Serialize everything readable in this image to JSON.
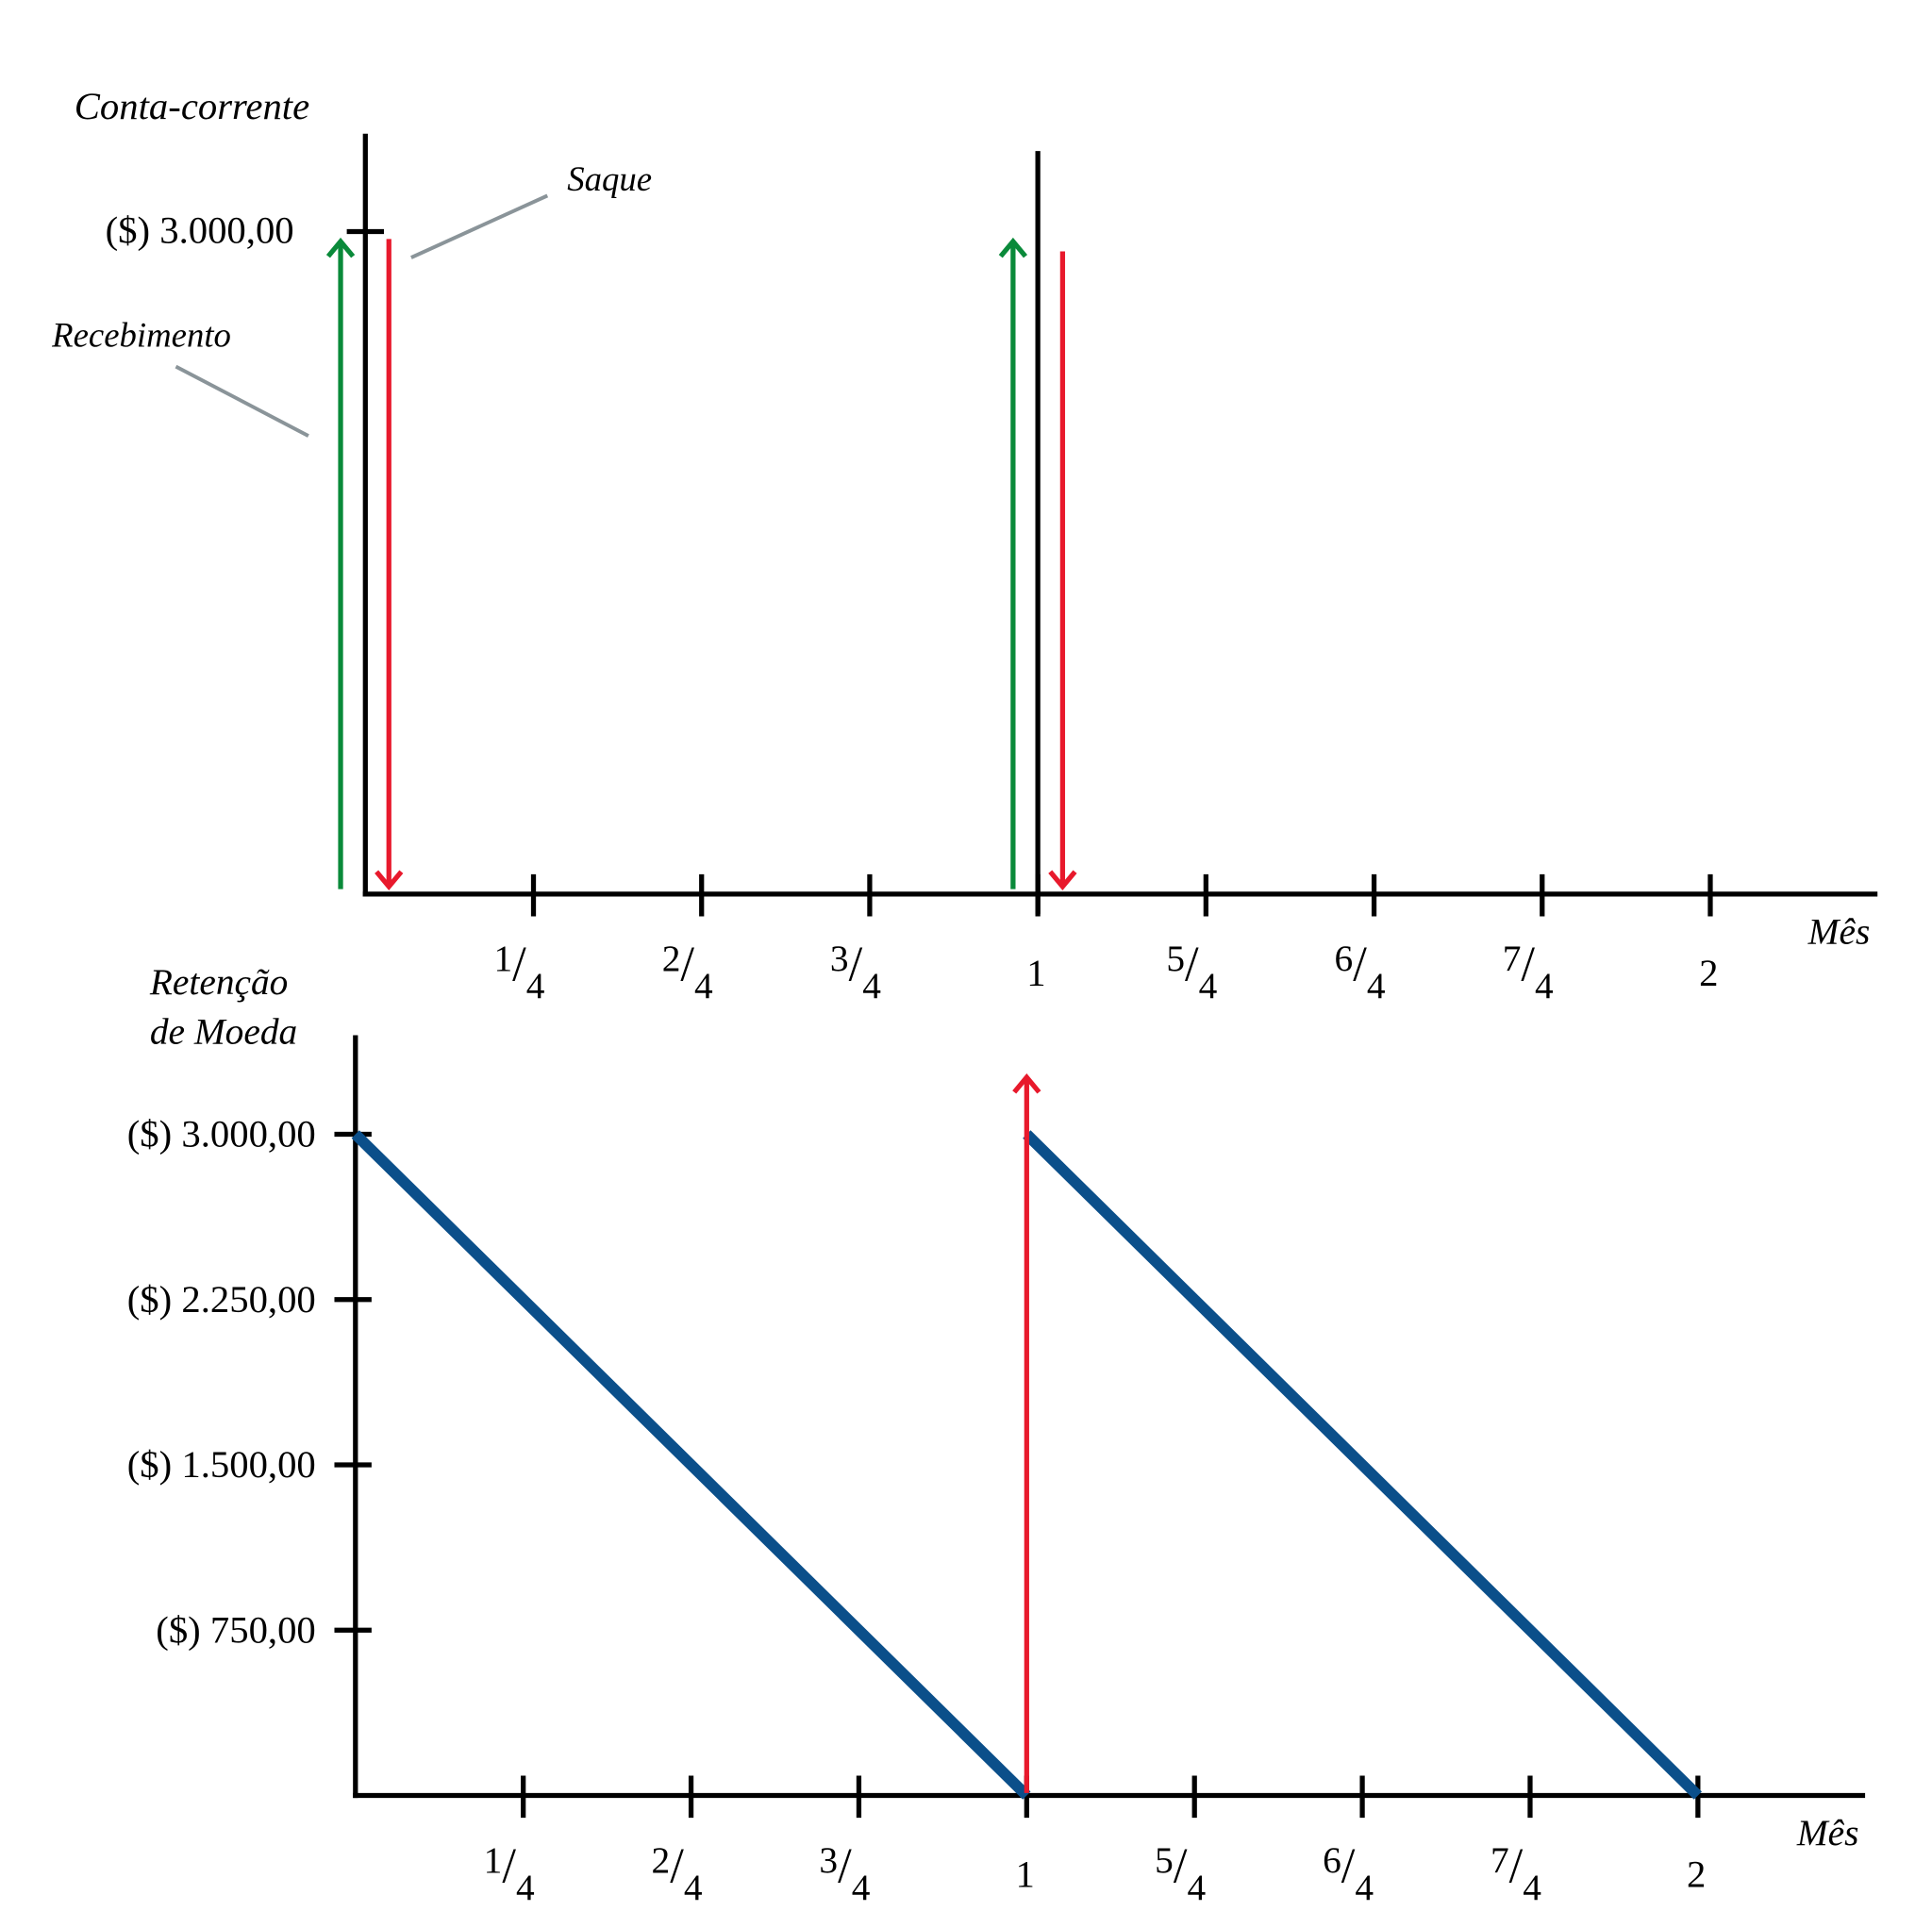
{
  "colors": {
    "axis": "#000000",
    "receipt": "#0a8a3a",
    "withdrawal": "#e8192c",
    "balance": "#0b4f8a",
    "leader": "#8a9499"
  },
  "top_chart": {
    "title": "Conta-corrente",
    "y_tick_label": "($) 3.000,00",
    "y_tick_value": 3000,
    "x_label": "Mês",
    "annotations": {
      "withdrawal": "Saque",
      "receipt": "Recebimento"
    },
    "receipts": [
      {
        "month": 0,
        "amount": 3000
      },
      {
        "month": 1,
        "amount": 3000
      }
    ],
    "withdrawals": [
      {
        "month": 0,
        "amount": 3000
      },
      {
        "month": 1,
        "amount": 3000
      }
    ]
  },
  "bottom_chart": {
    "title_line1": "Retenção",
    "title_line2": "de Moeda",
    "x_label": "Mês",
    "y_ticks": [
      {
        "value": 3000,
        "label": "($) 3.000,00"
      },
      {
        "value": 2250,
        "label": "($) 2.250,00"
      },
      {
        "value": 1500,
        "label": "($) 1.500,00"
      },
      {
        "value": 750,
        "label": "($) 750,00"
      }
    ],
    "balance_series": [
      [
        0,
        3000
      ],
      [
        1,
        0
      ],
      [
        1,
        3000
      ],
      [
        2,
        0
      ]
    ],
    "refill_arrow": {
      "month": 1,
      "amount": 3000
    }
  },
  "x_ticks": [
    {
      "value": 0.25,
      "num": "1",
      "den": "4"
    },
    {
      "value": 0.5,
      "num": "2",
      "den": "4"
    },
    {
      "value": 0.75,
      "num": "3",
      "den": "4"
    },
    {
      "value": 1,
      "whole": "1"
    },
    {
      "value": 1.25,
      "num": "5",
      "den": "4"
    },
    {
      "value": 1.5,
      "num": "6",
      "den": "4"
    },
    {
      "value": 1.75,
      "num": "7",
      "den": "4"
    },
    {
      "value": 2,
      "whole": "2"
    }
  ]
}
